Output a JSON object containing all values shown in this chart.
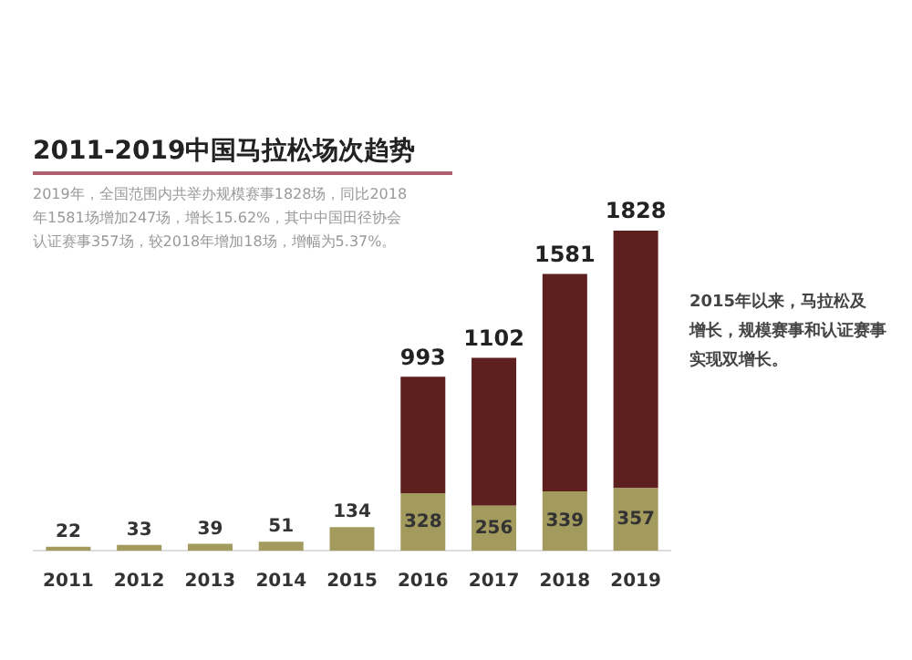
{
  "chart_data": {
    "type": "bar",
    "title": "2011-2019中国马拉松场次趋势",
    "subtitle": "2019年，全国范围内共举办规模赛事1828场，同比2018年1581场增加247场，增长15.62%，其中中国田径协会认证赛事357场，较2018年增加18场，增幅为5.37%。",
    "annotations": [
      "2015年以来，马拉松及",
      "增长，规模赛事和认证赛事实现双增长。"
    ],
    "categories": [
      "2011",
      "2012",
      "2013",
      "2014",
      "2015",
      "2016",
      "2017",
      "2018",
      "2019"
    ],
    "stacked": true,
    "series": [
      {
        "color": "#a39a5e",
        "values": [
          22,
          33,
          39,
          51,
          134,
          328,
          256,
          339,
          357
        ],
        "value_labels": [
          "22",
          "33",
          "39",
          "51",
          "134",
          "328",
          "256",
          "339",
          "357"
        ]
      },
      {
        "color": "#5e1f1f",
        "values": [
          null,
          null,
          null,
          null,
          null,
          665,
          846,
          1242,
          1471
        ]
      }
    ],
    "totals": [
      null,
      null,
      null,
      null,
      null,
      "993",
      "1102",
      "1581",
      "1828"
    ],
    "grid": false,
    "legend": false
  }
}
